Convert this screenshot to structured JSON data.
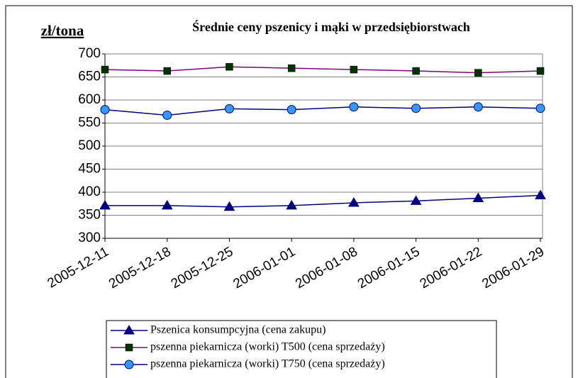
{
  "chart_data": {
    "type": "line",
    "title": "Średnie ceny pszenicy i mąki w przedsiębiorstwach",
    "y_label": "zł/tona",
    "x": [
      "2005-12-11",
      "2005-12-18",
      "2005-12-25",
      "2006-01-01",
      "2006-01-08",
      "2006-01-15",
      "2006-01-22",
      "2006-01-29"
    ],
    "series": [
      {
        "name": "Pszenica konsumpcyjna (cena zakupu)",
        "color": "#000080",
        "marker": "triangle",
        "marker_color": "#000080",
        "values": [
          371,
          371,
          368,
          371,
          377,
          381,
          387,
          393
        ]
      },
      {
        "name": "pszenna piekarnicza (worki) T500 (cena sprzedaży)",
        "color": "#800080",
        "marker": "square",
        "marker_color": "#003300",
        "values": [
          666,
          663,
          672,
          669,
          666,
          663,
          659,
          663
        ]
      },
      {
        "name": "pszenna piekarnicza (worki) T750 (cena sprzedaży)",
        "color": "#000080",
        "marker": "circle",
        "marker_color": "#3399ff",
        "values": [
          579,
          567,
          581,
          579,
          585,
          582,
          585,
          582
        ]
      }
    ],
    "ylim": [
      300,
      700
    ],
    "yticks": [
      300,
      350,
      400,
      450,
      500,
      550,
      600,
      650,
      700
    ],
    "grid": true
  }
}
